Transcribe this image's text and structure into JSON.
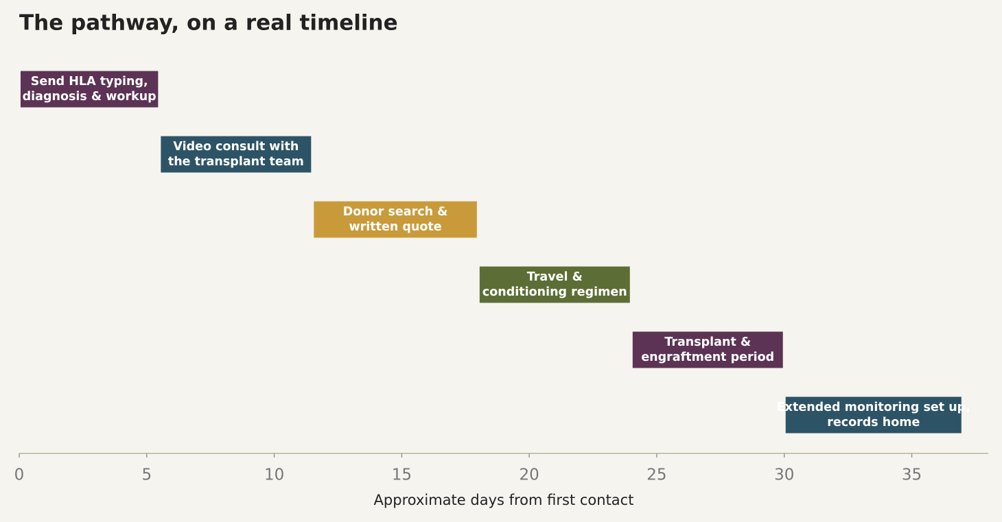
{
  "chart_data": {
    "type": "gantt",
    "title": "The pathway, on a real timeline",
    "x_label": "Approximate days from first contact",
    "tasks": [
      {
        "label": [
          "Send HLA typing,",
          "diagnosis & workup"
        ],
        "start": 0,
        "end": 5.5,
        "color": "#5c3354"
      },
      {
        "label": [
          "Video consult with",
          "the transplant team"
        ],
        "start": 5.5,
        "end": 11.5,
        "color": "#2d5366"
      },
      {
        "label": [
          "Donor search &",
          "written quote"
        ],
        "start": 11.5,
        "end": 18,
        "color": "#c99a3a"
      },
      {
        "label": [
          "Travel &",
          "conditioning regimen"
        ],
        "start": 18,
        "end": 24,
        "color": "#5c6e35"
      },
      {
        "label": [
          "Transplant &",
          "engraftment period"
        ],
        "start": 24,
        "end": 30,
        "color": "#5c3354"
      },
      {
        "label": [
          "Extended monitoring set up,",
          "records home"
        ],
        "start": 30,
        "end": 37,
        "color": "#2d5366"
      }
    ],
    "xlim": [
      0,
      38
    ],
    "xticks": [
      0,
      5,
      10,
      15,
      20,
      25,
      30,
      35
    ]
  }
}
